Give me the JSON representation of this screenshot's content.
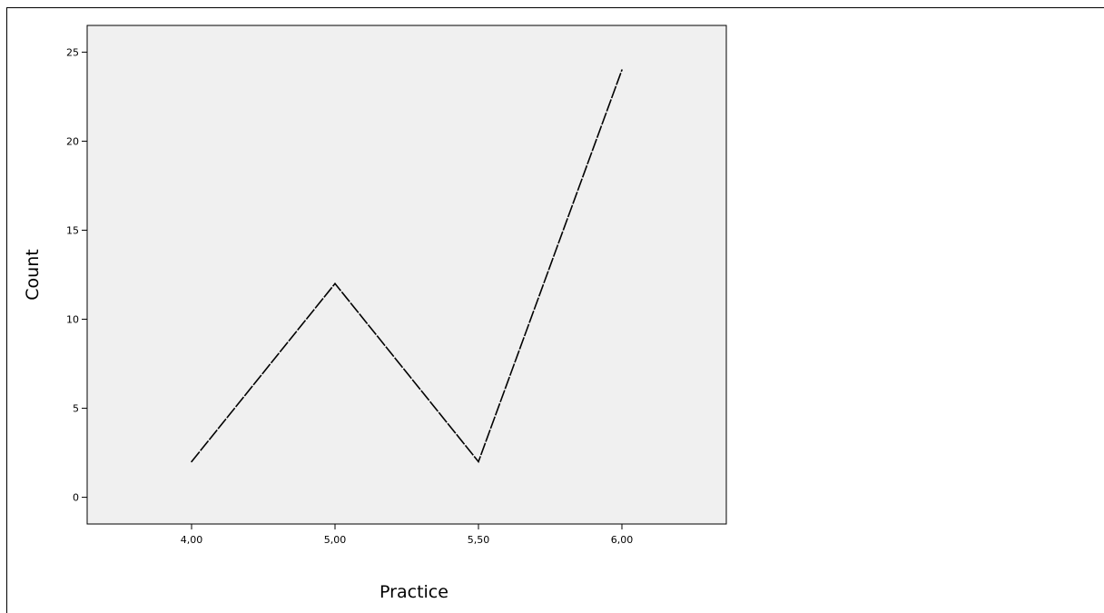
{
  "chart_data": {
    "type": "line",
    "title": "",
    "xlabel": "Practice",
    "ylabel": "Count",
    "categories": [
      "4,00",
      "5,00",
      "5,50",
      "6,00"
    ],
    "series": [
      {
        "values": [
          2,
          12,
          2,
          24
        ]
      }
    ],
    "yticks": [
      "0",
      "5",
      "10",
      "15",
      "20",
      "25"
    ],
    "ylim": [
      -1.5,
      26.5
    ],
    "grid": false,
    "legend": "none",
    "colors": {
      "plot_background": "#f0f0f0",
      "line": "#000000",
      "frame": "#000000"
    },
    "line_style": "dashed"
  }
}
